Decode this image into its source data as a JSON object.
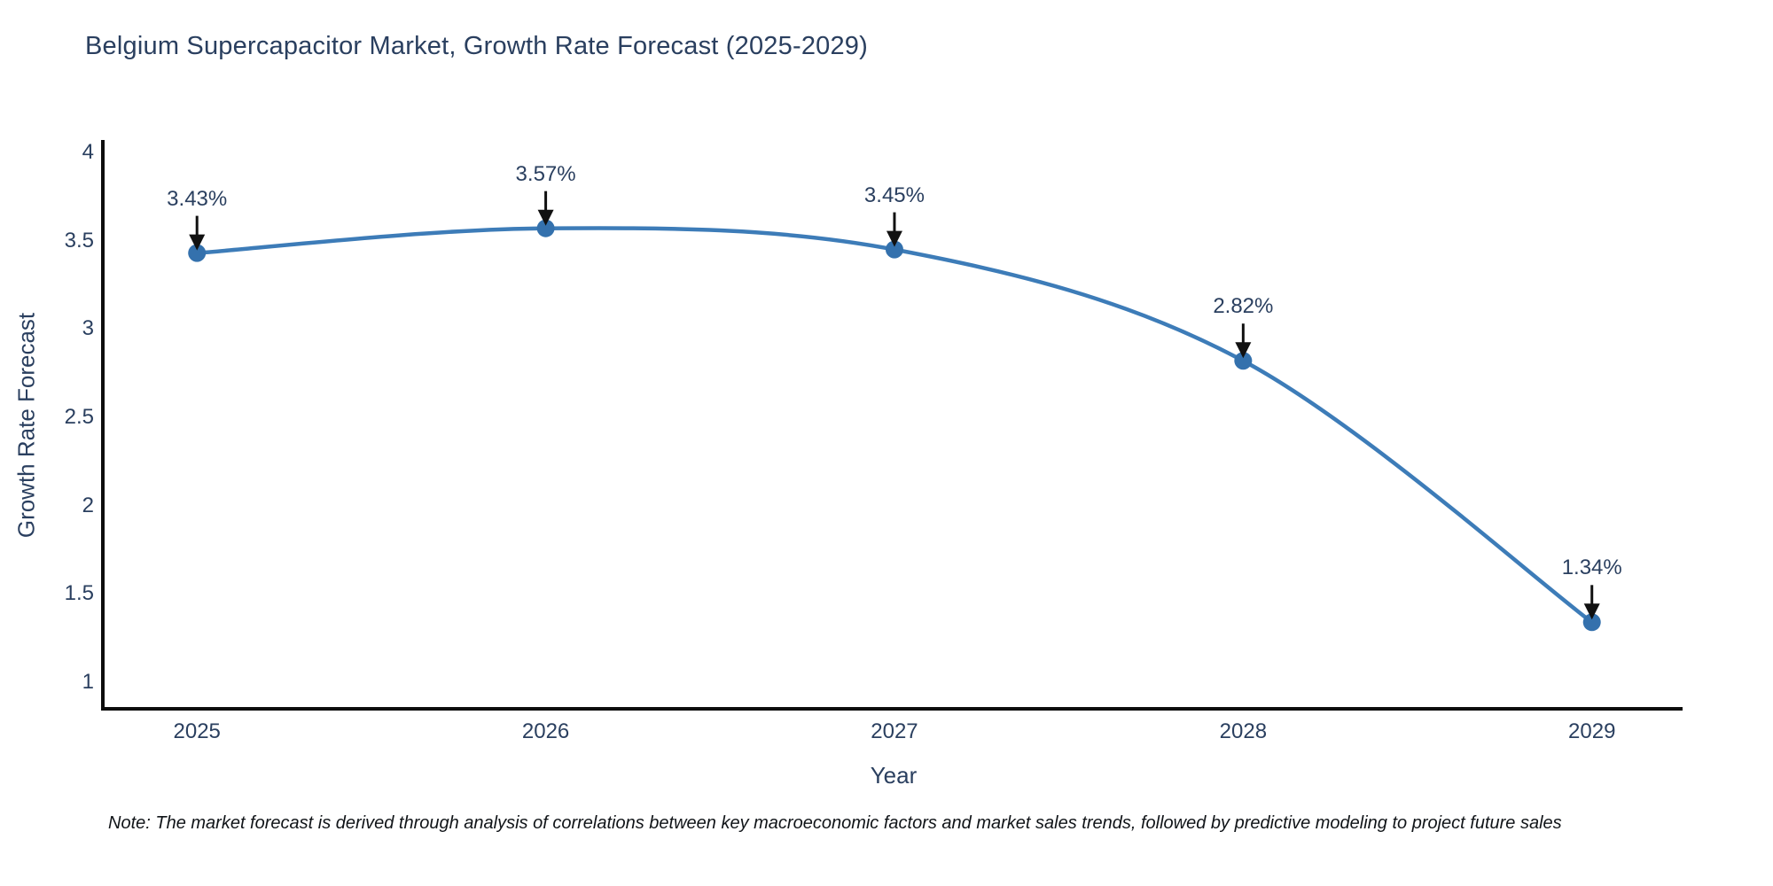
{
  "header": {
    "title": "Belgium Supercapacitor Market, Growth Rate Forecast (2025-2029)"
  },
  "chart_data": {
    "type": "line",
    "title": "Belgium Supercapacitor Market, Growth Rate Forecast (2025-2029)",
    "categories": [
      "2025",
      "2026",
      "2027",
      "2028",
      "2029"
    ],
    "x": [
      2025,
      2026,
      2027,
      2028,
      2029
    ],
    "values": [
      3.43,
      3.57,
      3.45,
      2.82,
      1.34
    ],
    "point_labels": [
      "3.43%",
      "3.57%",
      "3.45%",
      "2.82%",
      "1.34%"
    ],
    "xlabel": "Year",
    "ylabel": "Growth Rate Forecast",
    "yticks": [
      1,
      1.5,
      2,
      2.5,
      3,
      3.5,
      4
    ],
    "ytick_labels": [
      "1",
      "1.5",
      "2",
      "2.5",
      "3",
      "3.5",
      "4"
    ],
    "xlim": [
      2024.73,
      2029.26
    ],
    "ylim": [
      0.85,
      4.07
    ],
    "grid": false,
    "legend": "none",
    "smoothing": "spline",
    "colors": {
      "line": "#3d7cb8",
      "marker": "#3471ad",
      "axis": "#0d0d0d",
      "arrow": "#111111",
      "text": "#2a3f5f"
    }
  },
  "footer": {
    "note": "Note: The market forecast is derived through analysis of correlations between key macroeconomic factors and market sales trends, followed by predictive modeling to project future sales"
  }
}
